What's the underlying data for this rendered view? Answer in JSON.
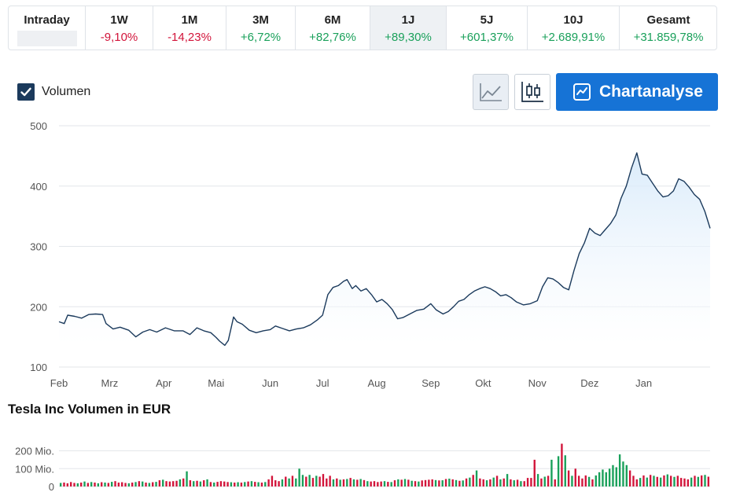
{
  "periods": [
    {
      "label": "Intraday",
      "change": "",
      "active": false
    },
    {
      "label": "1W",
      "change": "-9,10%",
      "active": false
    },
    {
      "label": "1M",
      "change": "-14,23%",
      "active": false
    },
    {
      "label": "3M",
      "change": "+6,72%",
      "active": false
    },
    {
      "label": "6M",
      "change": "+82,76%",
      "active": false
    },
    {
      "label": "1J",
      "change": "+89,30%",
      "active": true
    },
    {
      "label": "5J",
      "change": "+601,37%",
      "active": false
    },
    {
      "label": "10J",
      "change": "+2.689,91%",
      "active": false
    },
    {
      "label": "Gesamt",
      "change": "+31.859,78%",
      "active": false
    }
  ],
  "controls": {
    "volume_label": "Volumen",
    "volume_checked": true,
    "chart_type_active": "line",
    "chart_types": [
      "line-chart-icon",
      "candlestick-icon"
    ],
    "chartanalyse_label": "Chartanalyse"
  },
  "colors": {
    "line": "#1b3a5c",
    "area": "#e6f2fc",
    "up": "#19a05a",
    "down": "#d2143a",
    "accent": "#1673d6",
    "grid": "#e3e6ea"
  },
  "chart_data": [
    {
      "type": "area",
      "title": "",
      "xlabel": "",
      "ylabel": "",
      "ylim": [
        100,
        500
      ],
      "yticks": [
        100,
        200,
        300,
        400,
        500
      ],
      "grid": true,
      "xlim": [
        "2020-02-01",
        "2021-02-08"
      ],
      "x_tick_labels": [
        {
          "label": "Feb",
          "date": "2020-02-01"
        },
        {
          "label": "Mrz",
          "date": "2020-03-01"
        },
        {
          "label": "Apr",
          "date": "2020-04-01"
        },
        {
          "label": "Mai",
          "date": "2020-05-01"
        },
        {
          "label": "Jun",
          "date": "2020-06-01"
        },
        {
          "label": "Jul",
          "date": "2020-07-01"
        },
        {
          "label": "Aug",
          "date": "2020-08-01"
        },
        {
          "label": "Sep",
          "date": "2020-09-01"
        },
        {
          "label": "Okt",
          "date": "2020-10-01"
        },
        {
          "label": "Nov",
          "date": "2020-11-01"
        },
        {
          "label": "Dez",
          "date": "2020-12-01"
        },
        {
          "label": "Jan",
          "date": "2021-01-01"
        }
      ],
      "series": [
        {
          "name": "",
          "points": [
            [
              "2020-02-01",
              175
            ],
            [
              "2020-02-04",
              172
            ],
            [
              "2020-02-06",
              186
            ],
            [
              "2020-02-10",
              184
            ],
            [
              "2020-02-14",
              181
            ],
            [
              "2020-02-18",
              187
            ],
            [
              "2020-02-22",
              188
            ],
            [
              "2020-02-26",
              187
            ],
            [
              "2020-02-28",
              172
            ],
            [
              "2020-03-03",
              163
            ],
            [
              "2020-03-07",
              166
            ],
            [
              "2020-03-12",
              161
            ],
            [
              "2020-03-16",
              150
            ],
            [
              "2020-03-20",
              158
            ],
            [
              "2020-03-24",
              162
            ],
            [
              "2020-03-28",
              158
            ],
            [
              "2020-04-02",
              165
            ],
            [
              "2020-04-07",
              160
            ],
            [
              "2020-04-12",
              160
            ],
            [
              "2020-04-16",
              154
            ],
            [
              "2020-04-20",
              165
            ],
            [
              "2020-04-24",
              160
            ],
            [
              "2020-04-28",
              157
            ],
            [
              "2020-05-01",
              149
            ],
            [
              "2020-05-03",
              143
            ],
            [
              "2020-05-06",
              136
            ],
            [
              "2020-05-08",
              144
            ],
            [
              "2020-05-10",
              170
            ],
            [
              "2020-05-11",
              183
            ],
            [
              "2020-05-13",
              175
            ],
            [
              "2020-05-16",
              171
            ],
            [
              "2020-05-20",
              161
            ],
            [
              "2020-05-24",
              157
            ],
            [
              "2020-05-28",
              160
            ],
            [
              "2020-06-01",
              162
            ],
            [
              "2020-06-04",
              168
            ],
            [
              "2020-06-08",
              164
            ],
            [
              "2020-06-12",
              160
            ],
            [
              "2020-06-16",
              163
            ],
            [
              "2020-06-20",
              165
            ],
            [
              "2020-06-24",
              170
            ],
            [
              "2020-06-28",
              178
            ],
            [
              "2020-07-01",
              186
            ],
            [
              "2020-07-04",
              220
            ],
            [
              "2020-07-07",
              232
            ],
            [
              "2020-07-10",
              235
            ],
            [
              "2020-07-13",
              242
            ],
            [
              "2020-07-15",
              245
            ],
            [
              "2020-07-18",
              230
            ],
            [
              "2020-07-20",
              235
            ],
            [
              "2020-07-23",
              226
            ],
            [
              "2020-07-26",
              230
            ],
            [
              "2020-07-29",
              220
            ],
            [
              "2020-08-01",
              208
            ],
            [
              "2020-08-04",
              212
            ],
            [
              "2020-08-07",
              205
            ],
            [
              "2020-08-10",
              195
            ],
            [
              "2020-08-13",
              180
            ],
            [
              "2020-08-16",
              182
            ],
            [
              "2020-08-20",
              188
            ],
            [
              "2020-08-24",
              194
            ],
            [
              "2020-08-28",
              196
            ],
            [
              "2020-09-01",
              205
            ],
            [
              "2020-09-04",
              195
            ],
            [
              "2020-09-08",
              188
            ],
            [
              "2020-09-11",
              192
            ],
            [
              "2020-09-14",
              200
            ],
            [
              "2020-09-17",
              209
            ],
            [
              "2020-09-20",
              212
            ],
            [
              "2020-09-23",
              220
            ],
            [
              "2020-09-26",
              226
            ],
            [
              "2020-09-29",
              230
            ],
            [
              "2020-10-02",
              233
            ],
            [
              "2020-10-05",
              230
            ],
            [
              "2020-10-08",
              225
            ],
            [
              "2020-10-11",
              218
            ],
            [
              "2020-10-14",
              220
            ],
            [
              "2020-10-17",
              215
            ],
            [
              "2020-10-20",
              208
            ],
            [
              "2020-10-24",
              203
            ],
            [
              "2020-10-28",
              205
            ],
            [
              "2020-11-01",
              210
            ],
            [
              "2020-11-04",
              233
            ],
            [
              "2020-11-07",
              248
            ],
            [
              "2020-11-10",
              246
            ],
            [
              "2020-11-13",
              240
            ],
            [
              "2020-11-16",
              232
            ],
            [
              "2020-11-19",
              228
            ],
            [
              "2020-11-22",
              260
            ],
            [
              "2020-11-25",
              288
            ],
            [
              "2020-11-28",
              306
            ],
            [
              "2020-12-01",
              330
            ],
            [
              "2020-12-04",
              322
            ],
            [
              "2020-12-07",
              318
            ],
            [
              "2020-12-10",
              328
            ],
            [
              "2020-12-13",
              338
            ],
            [
              "2020-12-16",
              352
            ],
            [
              "2020-12-19",
              380
            ],
            [
              "2020-12-22",
              400
            ],
            [
              "2020-12-25",
              430
            ],
            [
              "2020-12-28",
              455
            ],
            [
              "2020-12-31",
              420
            ],
            [
              "2021-01-03",
              418
            ],
            [
              "2021-01-06",
              405
            ],
            [
              "2021-01-09",
              392
            ],
            [
              "2021-01-12",
              382
            ],
            [
              "2021-01-15",
              384
            ],
            [
              "2021-01-18",
              392
            ],
            [
              "2021-01-21",
              412
            ],
            [
              "2021-01-24",
              408
            ],
            [
              "2021-01-27",
              398
            ],
            [
              "2021-01-30",
              386
            ],
            [
              "2021-02-02",
              378
            ],
            [
              "2021-02-05",
              358
            ],
            [
              "2021-02-08",
              330
            ]
          ]
        }
      ]
    },
    {
      "type": "bar",
      "title": "Tesla Inc Volumen in EUR",
      "xlabel": "",
      "ylabel": "",
      "ylim": [
        0,
        260
      ],
      "y_unit": "Mio.",
      "yticks": [
        0,
        100,
        200
      ],
      "ytick_labels": [
        "0",
        "100 Mio.",
        "200 Mio."
      ],
      "grid": true,
      "bar_values": [
        20,
        22,
        18,
        25,
        20,
        18,
        22,
        28,
        20,
        25,
        22,
        18,
        24,
        22,
        20,
        26,
        30,
        22,
        24,
        20,
        18,
        22,
        25,
        30,
        28,
        22,
        20,
        24,
        26,
        35,
        38,
        30,
        28,
        30,
        32,
        40,
        45,
        85,
        35,
        30,
        32,
        28,
        35,
        40,
        25,
        22,
        26,
        30,
        28,
        25,
        24,
        22,
        24,
        22,
        25,
        28,
        30,
        26,
        24,
        22,
        25,
        40,
        60,
        35,
        30,
        40,
        55,
        45,
        60,
        45,
        100,
        65,
        55,
        65,
        48,
        60,
        55,
        70,
        45,
        60,
        40,
        45,
        38,
        40,
        42,
        48,
        40,
        38,
        42,
        36,
        30,
        28,
        30,
        25,
        28,
        30,
        26,
        25,
        35,
        40,
        38,
        42,
        38,
        32,
        30,
        28,
        34,
        36,
        38,
        40,
        36,
        34,
        35,
        42,
        44,
        40,
        36,
        32,
        34,
        45,
        50,
        65,
        90,
        45,
        40,
        35,
        40,
        50,
        60,
        40,
        45,
        70,
        40,
        35,
        38,
        30,
        30,
        48,
        48,
        150,
        70,
        45,
        55,
        60,
        150,
        40,
        170,
        240,
        175,
        90,
        60,
        100,
        60,
        45,
        62,
        54,
        40,
        62,
        80,
        95,
        80,
        100,
        120,
        108,
        180,
        140,
        120,
        90,
        60,
        40,
        48,
        62,
        50,
        65,
        60,
        54,
        50,
        62,
        68,
        60,
        54,
        60,
        48,
        45,
        40,
        50,
        60,
        54,
        62,
        65,
        55
      ],
      "bar_directions": "mixed up/down, shown by green (up) and red (down)"
    }
  ]
}
